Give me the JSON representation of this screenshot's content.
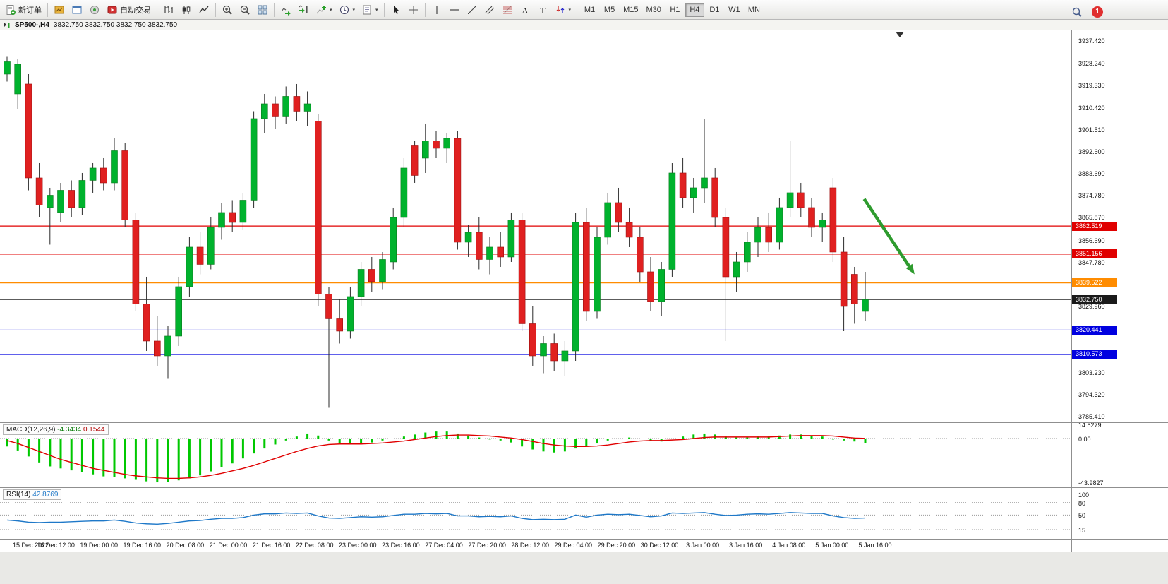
{
  "toolbar": {
    "new_order": "新订单",
    "autotrading": "自动交易",
    "timeframes": [
      "M1",
      "M5",
      "M15",
      "M30",
      "H1",
      "H4",
      "D1",
      "W1",
      "MN"
    ],
    "active_timeframe": "H4",
    "notification_count": "1",
    "icon_names": [
      "new-order-icon",
      "market-watch-icon",
      "navigator-icon",
      "data-window-icon",
      "autotrading-icon",
      "bar-chart-icon",
      "candlestick-chart-icon",
      "line-chart-icon",
      "zoom-in-icon",
      "zoom-out-icon",
      "tile-windows-icon",
      "auto-scroll-icon",
      "chart-shift-icon",
      "add-indicator-icon",
      "periods-icon",
      "template-icon",
      "cursor-icon",
      "crosshair-icon",
      "vertical-line-icon",
      "horizontal-line-icon",
      "trendline-icon",
      "channel-icon",
      "fibonacci-icon",
      "text-icon",
      "text-label-icon",
      "arrows-icon",
      "search-icon",
      "notification-badge"
    ]
  },
  "chart": {
    "title_symbol": "SP500-,H4",
    "title_ohlc": "3832.750 3832.750 3832.750 3832.750"
  },
  "chart_data": {
    "type": "candlestick",
    "symbol": "SP500-",
    "timeframe": "H4",
    "colors": {
      "up": "#00B22D",
      "down": "#E02020",
      "macd_hist": "#00C800",
      "macd_signal": "#E00000",
      "rsi_line": "#1E78C8",
      "line_red": "#E00000",
      "line_orange": "#FF8C00",
      "line_blue": "#0000E0",
      "price_line": "#444444"
    },
    "price_axis_labels": [
      "3937.420",
      "3928.240",
      "3919.330",
      "3910.420",
      "3901.510",
      "3892.600",
      "3883.690",
      "3874.780",
      "3865.870",
      "3856.690",
      "3847.780",
      "3829.960",
      "3803.230",
      "3794.320",
      "3785.410"
    ],
    "candles": [
      [
        3924,
        3931,
        3921,
        3929
      ],
      [
        3916,
        3930,
        3910,
        3928
      ],
      [
        3920,
        3924,
        3877,
        3882
      ],
      [
        3882,
        3888,
        3866,
        3871
      ],
      [
        3870,
        3878,
        3855,
        3875
      ],
      [
        3868,
        3880,
        3864,
        3877
      ],
      [
        3877,
        3881,
        3866,
        3870
      ],
      [
        3870,
        3884,
        3867,
        3881
      ],
      [
        3881,
        3888,
        3876,
        3886
      ],
      [
        3886,
        3890,
        3877,
        3880
      ],
      [
        3880,
        3898,
        3877,
        3893
      ],
      [
        3893,
        3896,
        3862,
        3865
      ],
      [
        3865,
        3868,
        3828,
        3831
      ],
      [
        3831,
        3842,
        3812,
        3816
      ],
      [
        3816,
        3826,
        3806,
        3810
      ],
      [
        3810,
        3822,
        3801,
        3818
      ],
      [
        3818,
        3842,
        3814,
        3838
      ],
      [
        3838,
        3858,
        3834,
        3854
      ],
      [
        3854,
        3860,
        3843,
        3847
      ],
      [
        3847,
        3866,
        3845,
        3862
      ],
      [
        3862,
        3872,
        3857,
        3868
      ],
      [
        3868,
        3873,
        3860,
        3864
      ],
      [
        3864,
        3876,
        3861,
        3873
      ],
      [
        3873,
        3909,
        3870,
        3906
      ],
      [
        3906,
        3916,
        3900,
        3912
      ],
      [
        3912,
        3915,
        3902,
        3907
      ],
      [
        3907,
        3919,
        3904,
        3915
      ],
      [
        3915,
        3920,
        3905,
        3909
      ],
      [
        3909,
        3917,
        3903,
        3912
      ],
      [
        3905,
        3908,
        3830,
        3835
      ],
      [
        3835,
        3838,
        3789,
        3825
      ],
      [
        3825,
        3833,
        3815,
        3820
      ],
      [
        3820,
        3838,
        3817,
        3834
      ],
      [
        3834,
        3848,
        3830,
        3845
      ],
      [
        3845,
        3850,
        3836,
        3840
      ],
      [
        3840,
        3852,
        3837,
        3849
      ],
      [
        3848,
        3870,
        3845,
        3866
      ],
      [
        3866,
        3890,
        3862,
        3886
      ],
      [
        3895,
        3897,
        3880,
        3883
      ],
      [
        3890,
        3904,
        3884,
        3897
      ],
      [
        3897,
        3901,
        3890,
        3894
      ],
      [
        3894,
        3900,
        3888,
        3898
      ],
      [
        3898,
        3901,
        3853,
        3856
      ],
      [
        3856,
        3863,
        3850,
        3860
      ],
      [
        3860,
        3866,
        3845,
        3849
      ],
      [
        3849,
        3858,
        3843,
        3854
      ],
      [
        3854,
        3860,
        3846,
        3850
      ],
      [
        3850,
        3868,
        3848,
        3865
      ],
      [
        3865,
        3868,
        3820,
        3823
      ],
      [
        3823,
        3830,
        3806,
        3810
      ],
      [
        3810,
        3818,
        3803,
        3815
      ],
      [
        3815,
        3819,
        3804,
        3808
      ],
      [
        3808,
        3816,
        3802,
        3812
      ],
      [
        3812,
        3868,
        3808,
        3864
      ],
      [
        3864,
        3870,
        3824,
        3828
      ],
      [
        3828,
        3862,
        3825,
        3858
      ],
      [
        3858,
        3876,
        3855,
        3872
      ],
      [
        3872,
        3878,
        3860,
        3864
      ],
      [
        3864,
        3870,
        3854,
        3858
      ],
      [
        3858,
        3862,
        3840,
        3844
      ],
      [
        3844,
        3850,
        3828,
        3832
      ],
      [
        3832,
        3848,
        3826,
        3845
      ],
      [
        3845,
        3888,
        3842,
        3884
      ],
      [
        3884,
        3890,
        3870,
        3874
      ],
      [
        3874,
        3882,
        3868,
        3878
      ],
      [
        3878,
        3906,
        3872,
        3882
      ],
      [
        3882,
        3886,
        3862,
        3866
      ],
      [
        3866,
        3870,
        3816,
        3842
      ],
      [
        3842,
        3852,
        3836,
        3848
      ],
      [
        3848,
        3860,
        3844,
        3856
      ],
      [
        3856,
        3866,
        3850,
        3862
      ],
      [
        3862,
        3868,
        3852,
        3856
      ],
      [
        3856,
        3874,
        3853,
        3870
      ],
      [
        3870,
        3897,
        3866,
        3876
      ],
      [
        3876,
        3880,
        3866,
        3870
      ],
      [
        3870,
        3874,
        3858,
        3862
      ],
      [
        3862,
        3868,
        3856,
        3865
      ],
      [
        3878,
        3882,
        3848,
        3852
      ],
      [
        3852,
        3858,
        3820,
        3830
      ],
      [
        3843,
        3846,
        3823,
        3831
      ],
      [
        3828,
        3844,
        3824,
        3832.75
      ]
    ],
    "horizontal_lines": [
      {
        "price": 3862.519,
        "label": "3862.519",
        "color": "#E00000"
      },
      {
        "price": 3851.156,
        "label": "3851.156",
        "color": "#E00000"
      },
      {
        "price": 3839.522,
        "label": "3839.522",
        "color": "#FF8C00"
      },
      {
        "price": 3820.441,
        "label": "3820.441",
        "color": "#0000E0"
      },
      {
        "price": 3810.573,
        "label": "3810.573",
        "color": "#0000E0"
      }
    ],
    "current_price": {
      "value": 3832.75,
      "label": "3832.750",
      "color": "#1a1a1a"
    },
    "trend_arrow": {
      "from_bar": 79.9,
      "from_price": 3873.5,
      "to_bar": 84.6,
      "to_price": 3843,
      "color": "#2E9B2E"
    },
    "time_labels": [
      "15 Dec 2022",
      "16 Dec 12:00",
      "19 Dec 00:00",
      "19 Dec 16:00",
      "20 Dec 08:00",
      "21 Dec 00:00",
      "21 Dec 16:00",
      "22 Dec 08:00",
      "23 Dec 00:00",
      "23 Dec 16:00",
      "27 Dec 04:00",
      "27 Dec 20:00",
      "28 Dec 12:00",
      "29 Dec 04:00",
      "29 Dec 20:00",
      "30 Dec 12:00",
      "3 Jan 00:00",
      "3 Jan 16:00",
      "4 Jan 08:00",
      "5 Jan 00:00",
      "5 Jan 16:00"
    ],
    "macd": {
      "title": "MACD(12,26,9)",
      "value_main": "-4.3434",
      "value_signal": "0.1544",
      "axis_labels": [
        "14.5279",
        "0.00",
        "-43.9827"
      ],
      "histogram": [
        -8,
        -12,
        -18,
        -24,
        -28,
        -30,
        -32,
        -34,
        -36,
        -38,
        -39,
        -40,
        -41.5,
        -43,
        -44,
        -43.5,
        -42,
        -40,
        -37,
        -33,
        -29,
        -25,
        -20,
        -15,
        -10,
        -6,
        -2,
        2,
        5,
        3,
        -2,
        -5,
        -6,
        -5,
        -4,
        -2,
        0,
        2,
        4,
        6,
        7,
        7,
        5,
        3,
        1,
        -1,
        -2,
        -4,
        -8,
        -11,
        -13,
        -14,
        -13,
        -10,
        -8,
        -5,
        -2,
        0,
        1,
        0,
        -2,
        -3,
        0,
        2,
        4,
        5,
        4,
        2,
        1,
        1,
        2,
        2,
        3,
        4,
        4,
        3,
        2,
        -1,
        -2,
        -3,
        -4.34
      ],
      "signal": [
        -2,
        -5,
        -9,
        -13,
        -17,
        -21,
        -24,
        -27,
        -30,
        -32,
        -34,
        -36,
        -37.5,
        -38.5,
        -39.5,
        -40,
        -40,
        -39.5,
        -38.5,
        -37,
        -35,
        -32.5,
        -30,
        -27,
        -23.5,
        -20,
        -16.5,
        -13,
        -10,
        -7.5,
        -6,
        -5.5,
        -5.5,
        -5.5,
        -5,
        -4.5,
        -3.5,
        -2.5,
        -1,
        0.5,
        2,
        3,
        3.5,
        3.5,
        3,
        2.5,
        1.5,
        0.5,
        -1,
        -3,
        -5,
        -6.5,
        -7.5,
        -8,
        -8,
        -7.5,
        -6.5,
        -5,
        -3.5,
        -2.5,
        -2,
        -2,
        -1.5,
        -1,
        0,
        1,
        1.5,
        1.5,
        1.5,
        1.5,
        1.5,
        1.5,
        2,
        2.5,
        3,
        3,
        3,
        2.5,
        1.5,
        0.5,
        0.15
      ]
    },
    "rsi": {
      "title": "RSI(14)",
      "value": "42.8769",
      "axis_labels": [
        "100",
        "80",
        "50",
        "15"
      ],
      "levels": [
        80,
        50,
        15
      ],
      "values": [
        38,
        36,
        33,
        32,
        33,
        33,
        34,
        35,
        36,
        36,
        38,
        35,
        31,
        29,
        28,
        30,
        33,
        36,
        37,
        40,
        42,
        42,
        44,
        50,
        53,
        53,
        55,
        54,
        55,
        48,
        43,
        42,
        44,
        46,
        45,
        46,
        49,
        52,
        52,
        54,
        53,
        54,
        48,
        48,
        46,
        47,
        46,
        48,
        42,
        39,
        40,
        39,
        40,
        50,
        45,
        50,
        52,
        51,
        52,
        49,
        46,
        48,
        55,
        54,
        55,
        56,
        52,
        49,
        50,
        52,
        53,
        52,
        54,
        56,
        55,
        54,
        54,
        48,
        44,
        42,
        42.88
      ]
    }
  }
}
